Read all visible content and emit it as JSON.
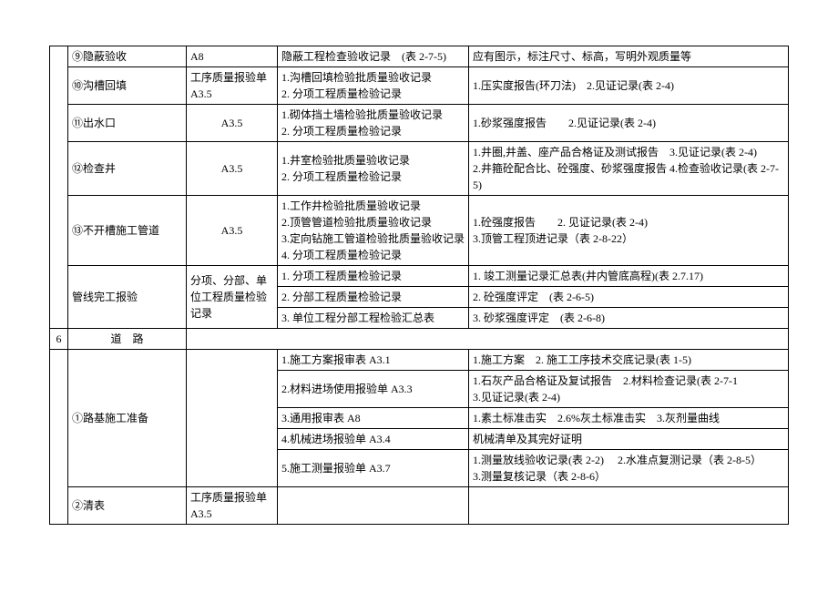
{
  "rows": [
    {
      "c1": "⑨隐蔽验收",
      "c2": "A8",
      "c3": "隐蔽工程检查验收记录　(表 2-7-5)",
      "c4": "应有图示，标注尺寸、标高，写明外观质量等"
    },
    {
      "c1": "⑩沟槽回填",
      "c2": "工序质量报验单 A3.5",
      "c3": "1.沟槽回填检验批质量验收记录\n2. 分项工程质量检验记录",
      "c4": "1.压实度报告(环刀法)　2.见证记录(表 2-4)"
    },
    {
      "c1": "⑪出水口",
      "c2": "A3.5",
      "c2align": "center",
      "c3": "1.砌体挡土墙检验批质量验收记录\n2. 分项工程质量检验记录",
      "c4": "1.砂浆强度报告　　2.见证记录(表 2-4)"
    },
    {
      "c1": "⑫检查井",
      "c2": "A3.5",
      "c2align": "center",
      "c3": "1.井室检验批质量验收记录\n2. 分项工程质量检验记录",
      "c4": "1.井圈,井盖、座产品合格证及测试报告　3.见证记录(表 2-4)\n2.井箍砼配合比、砼强度、砂浆强度报告 4.检查验收记录(表 2-7-5)"
    },
    {
      "c1": "⑬不开槽施工管道",
      "c2": "A3.5",
      "c2align": "center",
      "c3": "1.工作井检验批质量验收记录\n2.顶管管道检验批质量验收记录\n3.定向钻施工管道检验批质量验收记录\n4. 分项工程质量检验记录",
      "c4": "1.砼强度报告　　2. 见证记录(表 2-4)\n3.顶管工程顶进记录（表 2-8-22）"
    },
    {
      "c1": "管线完工报验",
      "c1rowspan": 3,
      "c2": "分项、分部、单位工程质量检验记录",
      "c2rowspan": 3,
      "c3": "1. 分项工程质量检验记录",
      "c4": "1. 竣工测量记录汇总表(井内管底高程)(表 2.7.17)"
    },
    {
      "c3": "2. 分部工程质量检验记录",
      "c4": "2. 砼强度评定　(表 2-6-5)"
    },
    {
      "c3": "3. 单位工程分部工程检验汇总表",
      "c4": "3. 砂浆强度评定　(表 2-6-8)"
    },
    {
      "c0": "6",
      "c1": "道　路",
      "c1align": "center",
      "colspan345": true
    },
    {
      "c0rowspan": 7,
      "c1": "①路基施工准备",
      "c1rowspan": 5,
      "c2rowspan": 5,
      "c3": "1.施工方案报审表 A3.1",
      "c4": "1.施工方案　2. 施工工序技术交底记录(表 1-5)"
    },
    {
      "c3": "2.材料进场使用报验单 A3.3",
      "c4": "1.石灰产品合格证及复试报告　2.材料检查记录(表 2-7-1\n3.见证记录(表 2-4)"
    },
    {
      "c3": "3.通用报审表 A8",
      "c4": "1.素土标准击实　2.6%灰土标准击实　3.灰剂量曲线"
    },
    {
      "c3": "4.机械进场报验单 A3.4",
      "c4": "机械清单及其完好证明"
    },
    {
      "c3": "5.施工测量报验单 A3.7",
      "c4": "1.测量放线验收记录(表 2-2)　 2.水准点复测记录（表 2-8-5）\n3.测量复核记录（表 2-8-6）"
    },
    {
      "c1": "②清表",
      "c1rowspan": 2,
      "c2": "工序质量报验单 A3.5",
      "c2rowspan": 2
    }
  ]
}
